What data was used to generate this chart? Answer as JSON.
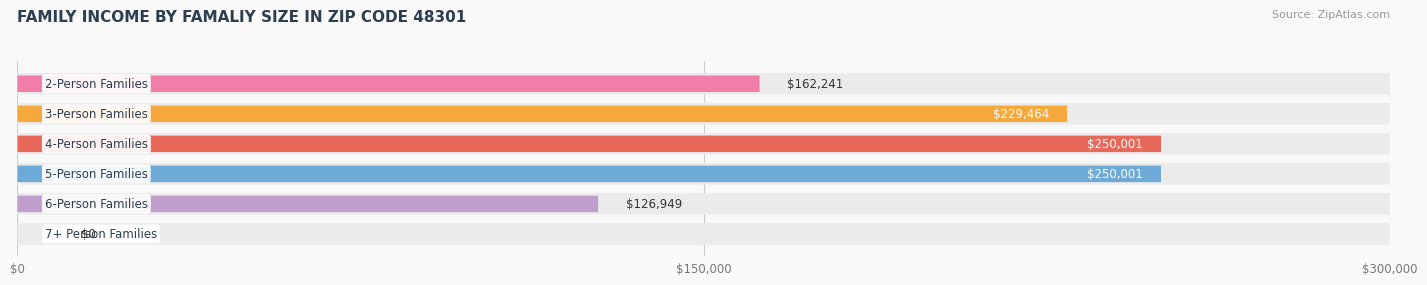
{
  "title": "FAMILY INCOME BY FAMALIY SIZE IN ZIP CODE 48301",
  "source": "Source: ZipAtlas.com",
  "categories": [
    "2-Person Families",
    "3-Person Families",
    "4-Person Families",
    "5-Person Families",
    "6-Person Families",
    "7+ Person Families"
  ],
  "values": [
    162241,
    229464,
    250001,
    250001,
    126949,
    0
  ],
  "value_labels": [
    "$162,241",
    "$229,464",
    "$250,001",
    "$250,001",
    "$126,949",
    "$0"
  ],
  "bar_colors": [
    "#f17ea8",
    "#f5a83c",
    "#e8685a",
    "#6eaad8",
    "#c09fcc",
    "#6ecece"
  ],
  "bar_bg_color": "#ebebeb",
  "xlim": [
    0,
    300000
  ],
  "xtick_labels": [
    "$0",
    "$150,000",
    "$300,000"
  ],
  "title_color": "#2d3e50",
  "title_fontsize": 11,
  "label_fontsize": 8.5,
  "value_fontsize": 8.5,
  "source_fontsize": 8,
  "background_color": "#f9f9f9",
  "grid_color": "#cccccc",
  "max_val": 300000,
  "value_threshold": 220000
}
